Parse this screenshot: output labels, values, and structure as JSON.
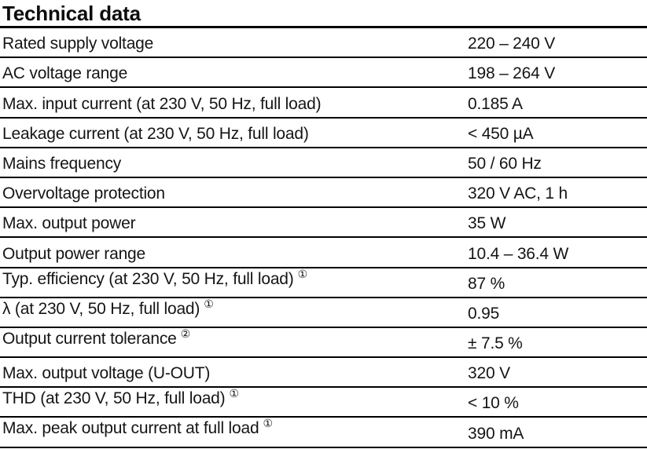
{
  "header": {
    "title": "Technical data"
  },
  "table": {
    "rows": [
      {
        "label": "Rated supply voltage",
        "value": "220 – 240 V"
      },
      {
        "label": "AC voltage range",
        "value": "198 – 264 V"
      },
      {
        "label": "Max. input current (at 230 V, 50 Hz, full load)",
        "value": "0.185 A"
      },
      {
        "label": "Leakage current (at 230 V, 50 Hz, full load)",
        "value": "< 450 µA"
      },
      {
        "label": "Mains frequency",
        "value": "50 / 60 Hz"
      },
      {
        "label": "Overvoltage protection",
        "value": "320 V AC, 1 h"
      },
      {
        "label": "Max. output power",
        "value": "35 W"
      },
      {
        "label": "Output power range",
        "value": "10.4 – 36.4 W"
      },
      {
        "label": "Typ. efficiency (at 230 V, 50 Hz, full load)",
        "footnote": "①",
        "value": "87 %"
      },
      {
        "label": "λ (at 230 V, 50 Hz, full load)",
        "footnote": "①",
        "value": "0.95"
      },
      {
        "label": "Output current tolerance",
        "footnote": "②",
        "value": "± 7.5 %"
      },
      {
        "label": "Max. output voltage (U-OUT)",
        "value": "320 V"
      },
      {
        "label": "THD (at 230 V, 50 Hz, full load)",
        "footnote": "①",
        "value": "< 10 %"
      },
      {
        "label": "Max. peak output current at full load",
        "footnote": "①",
        "value": "390 mA"
      }
    ]
  },
  "colors": {
    "text": "#151515",
    "rule": "#000000",
    "background": "#ffffff"
  }
}
